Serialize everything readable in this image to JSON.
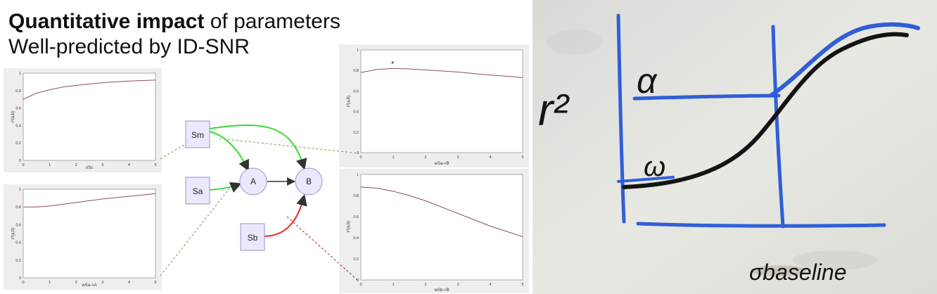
{
  "heading": {
    "bold": "Quantitative impact",
    "rest": " of parameters",
    "subtitle": "Well-predicted by ID-SNR"
  },
  "diagram": {
    "nodes": {
      "sm": "Sm",
      "sa": "Sa",
      "sb": "Sb",
      "a": "A",
      "b": "B"
    },
    "colors": {
      "green": "#33dd33",
      "red": "#ee2222",
      "node_fill": "#ece8fb",
      "node_stroke": "#9a90c8"
    }
  },
  "plots": {
    "y_ticks": [
      "0",
      "0.2",
      "0.4",
      "0.6",
      "0.8",
      "1"
    ],
    "x_ticks": [
      "0",
      "1",
      "2",
      "3",
      "4",
      "5"
    ],
    "ylabel": "r²(a,b)",
    "p1": {
      "xlabel": "σSc",
      "x": [
        0,
        0.5,
        1,
        1.5,
        2,
        2.5,
        3,
        3.5,
        4,
        4.5,
        5
      ],
      "y": [
        0.7,
        0.77,
        0.81,
        0.84,
        0.86,
        0.875,
        0.89,
        0.9,
        0.91,
        0.915,
        0.92
      ]
    },
    "p2": {
      "xlabel": "wSa->A",
      "x": [
        0,
        0.5,
        1,
        1.5,
        2,
        2.5,
        3,
        3.5,
        4,
        4.5,
        5
      ],
      "y": [
        0.8,
        0.8,
        0.81,
        0.83,
        0.85,
        0.87,
        0.89,
        0.905,
        0.92,
        0.935,
        0.95
      ]
    },
    "p3": {
      "xlabel": "wSa->B",
      "marker": "*",
      "x": [
        0,
        0.5,
        1,
        1.5,
        2,
        2.5,
        3,
        3.5,
        4,
        4.5,
        5
      ],
      "y": [
        0.78,
        0.81,
        0.82,
        0.815,
        0.805,
        0.795,
        0.785,
        0.77,
        0.755,
        0.745,
        0.73
      ]
    },
    "p4": {
      "xlabel": "wSb->B",
      "x": [
        0,
        0.5,
        1,
        1.5,
        2,
        2.5,
        3,
        3.5,
        4,
        4.5,
        5
      ],
      "y": [
        0.88,
        0.87,
        0.84,
        0.8,
        0.75,
        0.69,
        0.63,
        0.57,
        0.51,
        0.46,
        0.41
      ]
    }
  },
  "whiteboard": {
    "ylabel": "r²",
    "curve_alpha": "α",
    "curve_low": "ω",
    "xlabel": "σbaseline",
    "colors": {
      "board": "#e6e6e1",
      "blue": "#2f5fd8",
      "black": "#141414"
    }
  }
}
